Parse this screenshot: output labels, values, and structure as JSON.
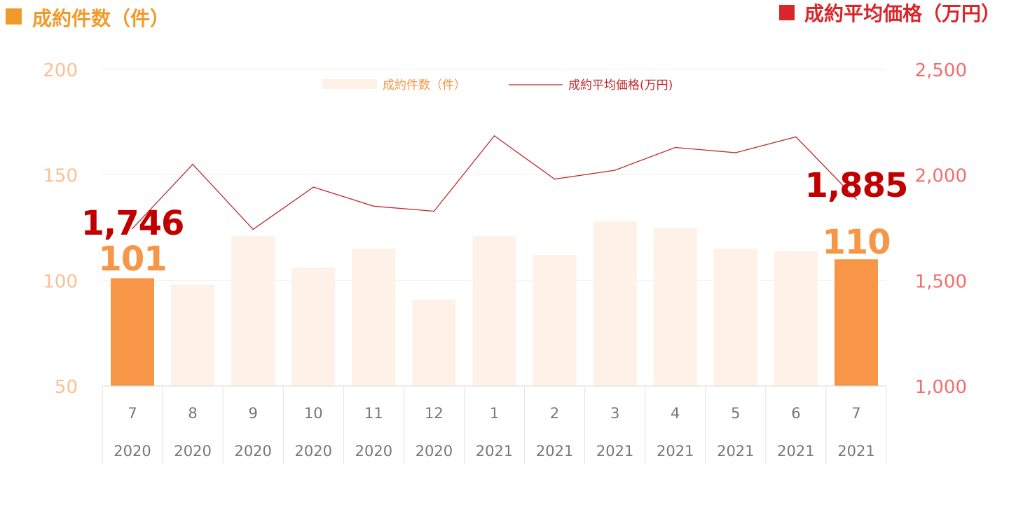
{
  "chart_data": {
    "type": "bar+line",
    "left_header": "成約件数（件）",
    "right_header": "成約平均価格（万円）",
    "colors": {
      "left_header": "#f09a2a",
      "right_header": "#d9262b",
      "bar_default": "#fdf1e8",
      "bar_highlight": "#f79646",
      "line": "#c0282d",
      "left_ticks": "#fac090",
      "right_ticks": "#f26d6d",
      "grid": "#f2f2f2"
    },
    "categories": [
      {
        "month": "7",
        "year": "2020"
      },
      {
        "month": "8",
        "year": "2020"
      },
      {
        "month": "9",
        "year": "2020"
      },
      {
        "month": "10",
        "year": "2020"
      },
      {
        "month": "11",
        "year": "2020"
      },
      {
        "month": "12",
        "year": "2020"
      },
      {
        "month": "1",
        "year": "2021"
      },
      {
        "month": "2",
        "year": "2021"
      },
      {
        "month": "3",
        "year": "2021"
      },
      {
        "month": "4",
        "year": "2021"
      },
      {
        "month": "5",
        "year": "2021"
      },
      {
        "month": "6",
        "year": "2021"
      },
      {
        "month": "7",
        "year": "2021"
      }
    ],
    "series": [
      {
        "name": "成約件数（件）",
        "type": "bar",
        "axis": "left",
        "values": [
          101,
          98,
          121,
          106,
          115,
          91,
          121,
          112,
          128,
          125,
          115,
          114,
          110
        ],
        "highlight": [
          0,
          12
        ]
      },
      {
        "name": "成約平均価格(万円)",
        "type": "line",
        "axis": "right",
        "values": [
          1746,
          2050,
          1742,
          1942,
          1852,
          1828,
          2185,
          1980,
          2022,
          2130,
          2105,
          2180,
          1885
        ]
      }
    ],
    "left_axis": {
      "min": 50,
      "max": 200,
      "ticks": [
        "50",
        "100",
        "150",
        "200"
      ]
    },
    "right_axis": {
      "min": 1000,
      "max": 2500,
      "ticks": [
        "1,000",
        "1,500",
        "2,000",
        "2,500"
      ]
    },
    "callouts": {
      "first_price": "1,746",
      "first_count": "101",
      "last_price": "1,885",
      "last_count": "110"
    },
    "legend_position": "top-center",
    "grid": true
  }
}
